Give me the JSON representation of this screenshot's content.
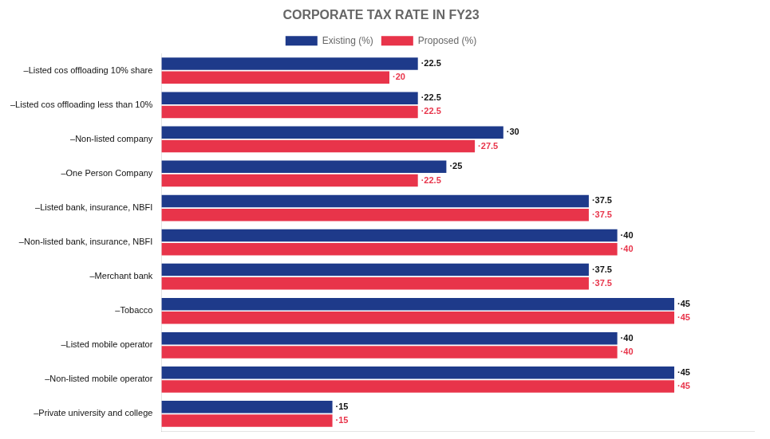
{
  "chart_data": {
    "type": "bar",
    "title": "CORPORATE TAX RATE IN FY23",
    "orientation": "horizontal",
    "categories": [
      "–Listed cos offloading 10% share",
      "–Listed cos offloading less than 10%",
      "–Non-listed company",
      "–One Person Company",
      "–Listed bank, insurance, NBFI",
      "–Non-listed bank, insurance, NBFI",
      "–Merchant bank",
      "–Tobacco",
      "–Listed mobile operator",
      "–Non-listed mobile operator",
      "–Private university and college"
    ],
    "series": [
      {
        "name": "Existing (%)",
        "color": "#1e3a8a",
        "values": [
          22.5,
          22.5,
          30,
          25,
          37.5,
          40,
          37.5,
          45,
          40,
          45,
          15
        ],
        "value_labels": [
          "·22.5",
          "·22.5",
          "·30",
          "·25",
          "·37.5",
          "·40",
          "·37.5",
          "·45",
          "·40",
          "·45",
          "·15"
        ]
      },
      {
        "name": "Proposed (%)",
        "color": "#e8344a",
        "values": [
          20,
          22.5,
          27.5,
          22.5,
          37.5,
          40,
          37.5,
          45,
          40,
          45,
          15
        ],
        "value_labels": [
          "·20",
          "·22.5",
          "·27.5",
          "·22.5",
          "·37.5",
          "·40",
          "·37.5",
          "·45",
          "·40",
          "·45",
          "·15"
        ]
      }
    ],
    "xlim": [
      0,
      52
    ],
    "data_labels": true,
    "tick_labels": "y",
    "grid": false,
    "legend": "top"
  }
}
